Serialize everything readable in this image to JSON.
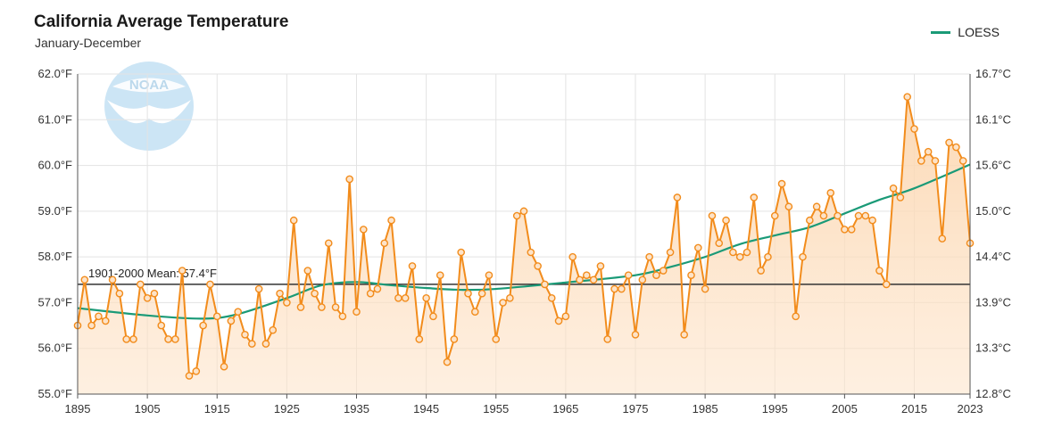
{
  "chart_data": {
    "type": "line",
    "title": "California Average Temperature",
    "subtitle": "January-December",
    "legend": [
      {
        "name": "LOESS",
        "color": "#1a9a77"
      }
    ],
    "legend_position": "top-right",
    "mean_line": {
      "label": "1901-2000 Mean: 57.4°F",
      "value": 57.4
    },
    "y_left": {
      "lim": [
        55,
        62
      ],
      "ticks": [
        "55.0°F",
        "56.0°F",
        "57.0°F",
        "58.0°F",
        "59.0°F",
        "60.0°F",
        "61.0°F",
        "62.0°F"
      ]
    },
    "y_right": {
      "ticks": [
        "12.8°C",
        "13.3°C",
        "13.9°C",
        "14.4°C",
        "15.0°C",
        "15.6°C",
        "16.1°C",
        "16.7°C"
      ]
    },
    "x_ticks": [
      "1895",
      "1905",
      "1915",
      "1925",
      "1935",
      "1945",
      "1955",
      "1965",
      "1975",
      "1985",
      "1995",
      "2005",
      "2015",
      "2023"
    ],
    "x_range": [
      1895,
      2023
    ],
    "grid": true,
    "colors": {
      "series": "#f28c1c",
      "fill": "#fde3c8",
      "loess": "#1a9a77",
      "mean": "#333333",
      "grid": "#e3e3e3"
    },
    "logo": "noaa-logo",
    "series": [
      {
        "values": [
          56.5,
          57.5,
          56.5,
          56.7,
          56.6,
          57.5,
          57.2,
          56.2,
          56.2,
          57.4,
          57.1,
          57.2,
          56.5,
          56.2,
          56.2,
          57.7,
          55.4,
          55.5,
          56.5,
          57.4,
          56.7,
          55.6,
          56.6,
          56.8,
          56.3,
          56.1,
          57.3,
          56.1,
          56.4,
          57.2,
          57.0,
          58.8,
          56.9,
          57.7,
          57.2,
          56.9,
          58.3,
          56.9,
          56.7,
          59.7,
          56.8,
          58.6,
          57.2,
          57.3,
          58.3,
          58.8,
          57.1,
          57.1,
          57.8,
          56.2,
          57.1,
          56.7,
          57.6,
          55.7,
          56.2,
          58.1,
          57.2,
          56.8,
          57.2,
          57.6,
          56.2,
          57.0,
          57.1,
          58.9,
          59.0,
          58.1,
          57.8,
          57.4,
          57.1,
          56.6,
          56.7,
          58.0,
          57.5,
          57.6,
          57.5,
          57.8,
          56.2,
          57.3,
          57.3,
          57.6,
          56.3,
          57.5,
          58.0,
          57.6,
          57.7,
          58.1,
          59.3,
          56.3,
          57.6,
          58.2,
          57.3,
          58.9,
          58.3,
          58.8,
          58.1,
          58.0,
          58.1,
          59.3,
          57.7,
          58.0,
          58.9,
          59.6,
          59.1,
          56.7,
          58.0,
          58.8,
          59.1,
          58.9,
          59.4,
          58.9,
          58.6,
          58.6,
          58.9,
          58.9,
          58.8,
          57.7,
          57.4,
          59.5,
          59.3,
          61.5,
          60.8,
          60.1,
          60.3,
          60.1,
          58.4,
          60.5,
          60.4,
          60.1,
          58.3
        ]
      }
    ],
    "loess": [
      [
        1895,
        56.88
      ],
      [
        1905,
        56.72
      ],
      [
        1913,
        56.65
      ],
      [
        1918,
        56.75
      ],
      [
        1925,
        57.1
      ],
      [
        1930,
        57.38
      ],
      [
        1935,
        57.45
      ],
      [
        1940,
        57.38
      ],
      [
        1945,
        57.32
      ],
      [
        1950,
        57.28
      ],
      [
        1955,
        57.3
      ],
      [
        1965,
        57.44
      ],
      [
        1975,
        57.6
      ],
      [
        1980,
        57.78
      ],
      [
        1985,
        58.0
      ],
      [
        1990,
        58.28
      ],
      [
        1995,
        58.47
      ],
      [
        2000,
        58.65
      ],
      [
        2005,
        58.95
      ],
      [
        2010,
        59.25
      ],
      [
        2015,
        59.5
      ],
      [
        2023,
        60.02
      ]
    ]
  }
}
